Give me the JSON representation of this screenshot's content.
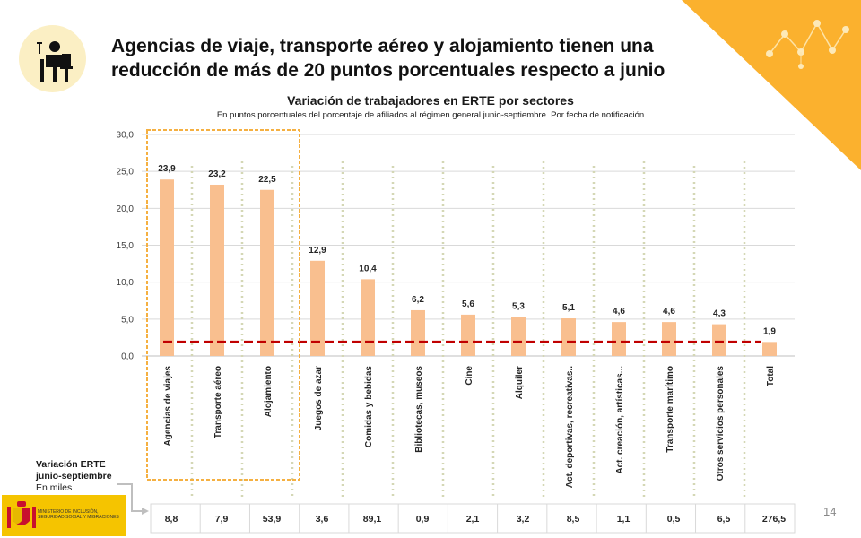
{
  "slide": {
    "title": "Agencias de viaje, transporte aéreo y alojamiento tienen una reducción de más de 20 puntos porcentuales respecto a junio",
    "page_number": "14",
    "icon": "person-at-desk-icon",
    "logo_ministry_text": "MINISTERIO DE INCLUSIÓN, SEGURIDAD SOCIAL Y MIGRACIONES"
  },
  "colors": {
    "accent": "#fbb12e",
    "bar": "#f9bf8f",
    "reference_line": "#c00000",
    "highlight_box": "#f5b041",
    "divider": "#d4d7b5",
    "icon_bg": "#fbefc4"
  },
  "chart_data": {
    "type": "bar",
    "title": "Variación de trabajadores en ERTE por sectores",
    "subtitle": "En puntos porcentuales del porcentaje de afiliados al régimen general junio-septiembre. Por fecha de notificación",
    "categories": [
      "Agencias de viajes",
      "Transporte aéreo",
      "Alojamiento",
      "Juegos de azar",
      "Comidas y bebidas",
      "Bibliotecas, museos",
      "Cine",
      "Alquiler",
      "Act. deportivas, recreativas..",
      "Act. creación, artísticas...",
      "Transporte marítimo",
      "Otros servicios personales",
      "Total"
    ],
    "values": [
      23.9,
      23.2,
      22.5,
      12.9,
      10.4,
      6.2,
      5.6,
      5.3,
      5.1,
      4.6,
      4.6,
      4.3,
      1.9
    ],
    "value_labels": [
      "23,9",
      "23,2",
      "22,5",
      "12,9",
      "10,4",
      "6,2",
      "5,6",
      "5,3",
      "5,1",
      "4,6",
      "4,6",
      "4,3",
      "1,9"
    ],
    "y_ticks": [
      "0,0",
      "5,0",
      "10,0",
      "15,0",
      "20,0",
      "25,0",
      "30,0"
    ],
    "ylim": [
      0,
      30
    ],
    "reference_value": 1.9,
    "grid": true,
    "highlighted_categories": [
      "Agencias de viajes",
      "Transporte aéreo",
      "Alojamiento"
    ]
  },
  "footer_table": {
    "label_line1": "Variación ERTE",
    "label_line2": "junio-septiembre",
    "label_line3": "En miles",
    "values": [
      "8,8",
      "7,9",
      "53,9",
      "3,6",
      "89,1",
      "0,9",
      "2,1",
      "3,2",
      "8,5",
      "1,1",
      "0,5",
      "6,5",
      "276,5"
    ]
  }
}
